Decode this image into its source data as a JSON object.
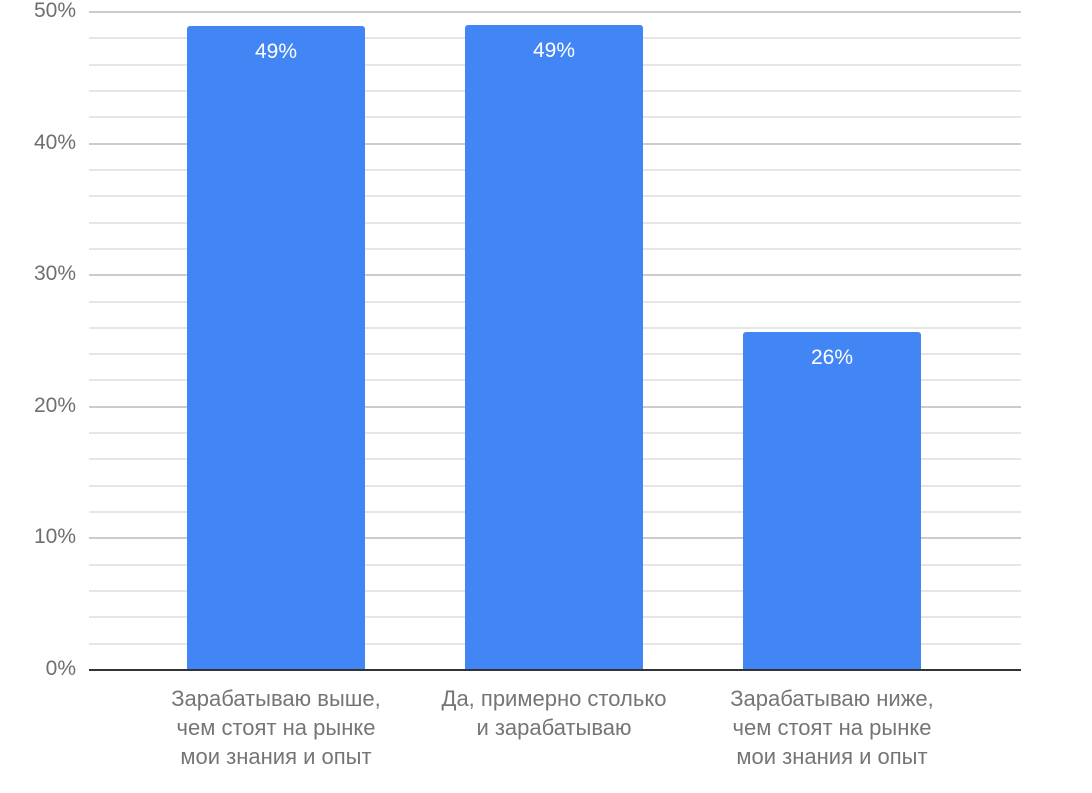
{
  "chart_data": {
    "type": "bar",
    "title": "",
    "xlabel": "",
    "ylabel": "",
    "categories": [
      "Зарабатываю выше,\nчем стоят на рынке\nмои знания и опыт",
      "Да, примерно столько\nи зарабатываю",
      "Зарабатываю ниже,\nчем стоят на рынке\nмои знания и опыт"
    ],
    "values": [
      49,
      49,
      26
    ],
    "data_labels": [
      "49%",
      "49%",
      "26%"
    ],
    "ylim": [
      0,
      50
    ],
    "yticks": [
      0,
      10,
      20,
      30,
      40,
      50
    ],
    "ytick_labels": [
      "0%",
      "10%",
      "20%",
      "30%",
      "40%",
      "50%"
    ],
    "grid": true,
    "minor_grid_per_major": 5,
    "legend": null,
    "colors": {
      "bar": "#4285f4",
      "axis": "#333333",
      "grid_major": "#cccccc",
      "grid_minor": "#e6e6e6",
      "text": "#757575"
    }
  }
}
